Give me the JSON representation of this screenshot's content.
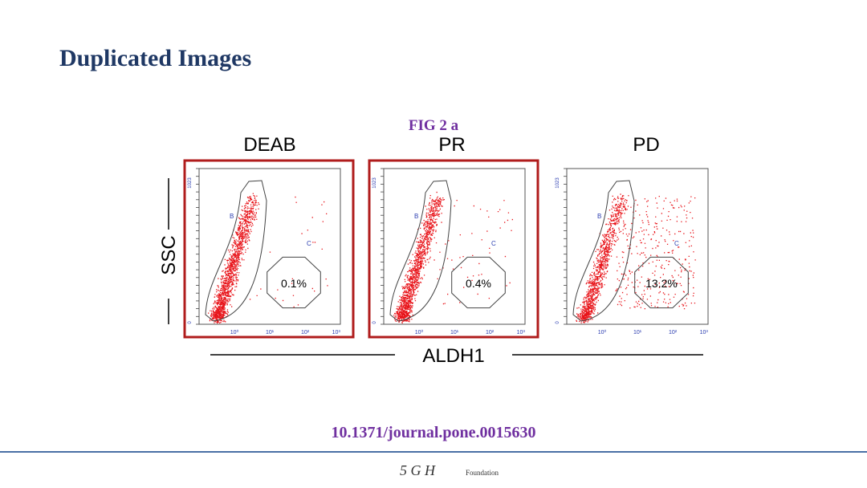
{
  "header": {
    "title": "Duplicated Images"
  },
  "figure": {
    "label": "FIG 2 a",
    "panels": [
      {
        "name": "DEAB",
        "gate_b": "B",
        "gate_c": "C",
        "percent": "0.1%",
        "highlighted": true
      },
      {
        "name": "PR",
        "gate_b": "B",
        "gate_c": "C",
        "percent": "0.4%",
        "highlighted": true
      },
      {
        "name": "PD",
        "gate_b": "B",
        "gate_c": "C",
        "percent": "13.2%",
        "highlighted": false
      }
    ],
    "y_axis": {
      "label": "SSC",
      "ticks": [
        "0",
        "1023"
      ]
    },
    "x_axis": {
      "label": "ALDH1",
      "ticks": [
        "10⁰",
        "10¹",
        "10²",
        "10³"
      ]
    }
  },
  "doi": "10.1371/journal.pone.0015630",
  "footer": {
    "logo": "5 G H",
    "text": "Foundation"
  }
}
